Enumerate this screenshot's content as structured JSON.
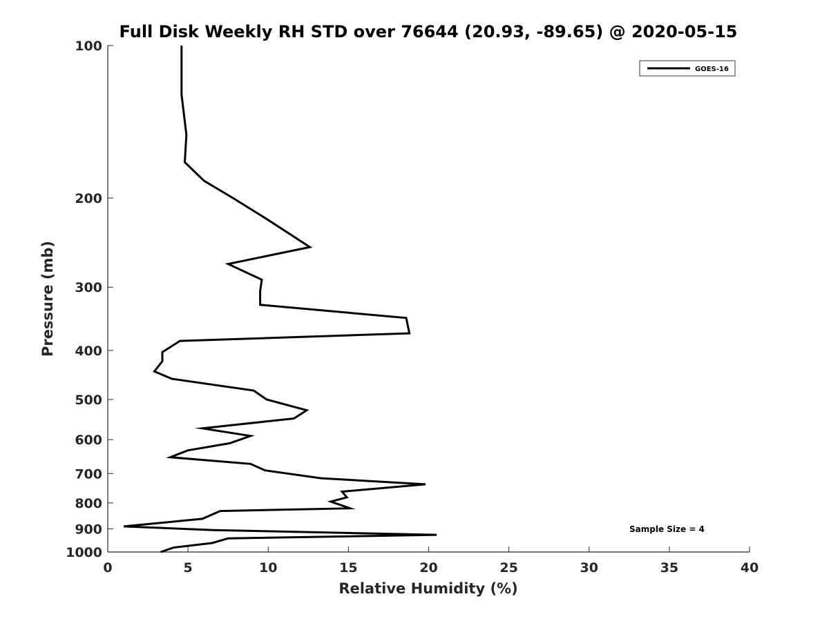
{
  "chart_data": {
    "type": "line",
    "title": "Full Disk Weekly RH STD over 76644 (20.93, -89.65) @ 2020-05-15",
    "xlabel": "Relative Humidity (%)",
    "ylabel": "Pressure (mb)",
    "xlim": [
      0,
      40
    ],
    "ylim": [
      100,
      1000
    ],
    "y_scale": "log",
    "y_reversed": true,
    "grid": false,
    "legend_position": "top-right",
    "x_ticks": [
      "0",
      "5",
      "10",
      "15",
      "20",
      "25",
      "30",
      "35",
      "40"
    ],
    "x_tick_values": [
      0,
      5,
      10,
      15,
      20,
      25,
      30,
      35,
      40
    ],
    "y_ticks": [
      "100",
      "200",
      "300",
      "400",
      "500",
      "600",
      "700",
      "800",
      "900",
      "1000"
    ],
    "y_tick_values": [
      100,
      200,
      300,
      400,
      500,
      600,
      700,
      800,
      900,
      1000
    ],
    "series": [
      {
        "name": "GOES-16",
        "color": "#000000",
        "x": [
          4.6,
          4.6,
          4.9,
          4.8,
          6.0,
          7.8,
          9.9,
          12.6,
          7.5,
          9.6,
          9.5,
          9.5,
          18.6,
          18.8,
          4.5,
          3.4,
          3.4,
          2.9,
          4.0,
          9.1,
          9.9,
          12.4,
          11.6,
          5.9,
          8.9,
          7.6,
          5.0,
          3.9,
          8.9,
          9.8,
          13.3,
          19.8,
          14.6,
          14.9,
          13.9,
          15.1,
          7.0,
          5.9,
          1.0,
          6.6,
          20.5,
          7.5,
          6.5,
          4.1,
          3.3
        ],
        "y": [
          100,
          125,
          150,
          170,
          185,
          200,
          220,
          250,
          270,
          290,
          305,
          325,
          345,
          370,
          383,
          403,
          420,
          440,
          455,
          480,
          500,
          525,
          545,
          570,
          590,
          610,
          630,
          650,
          670,
          690,
          715,
          735,
          760,
          780,
          795,
          820,
          830,
          860,
          890,
          905,
          925,
          940,
          960,
          980,
          1000
        ]
      }
    ],
    "annotations": [
      "Sample Size = 4"
    ]
  }
}
